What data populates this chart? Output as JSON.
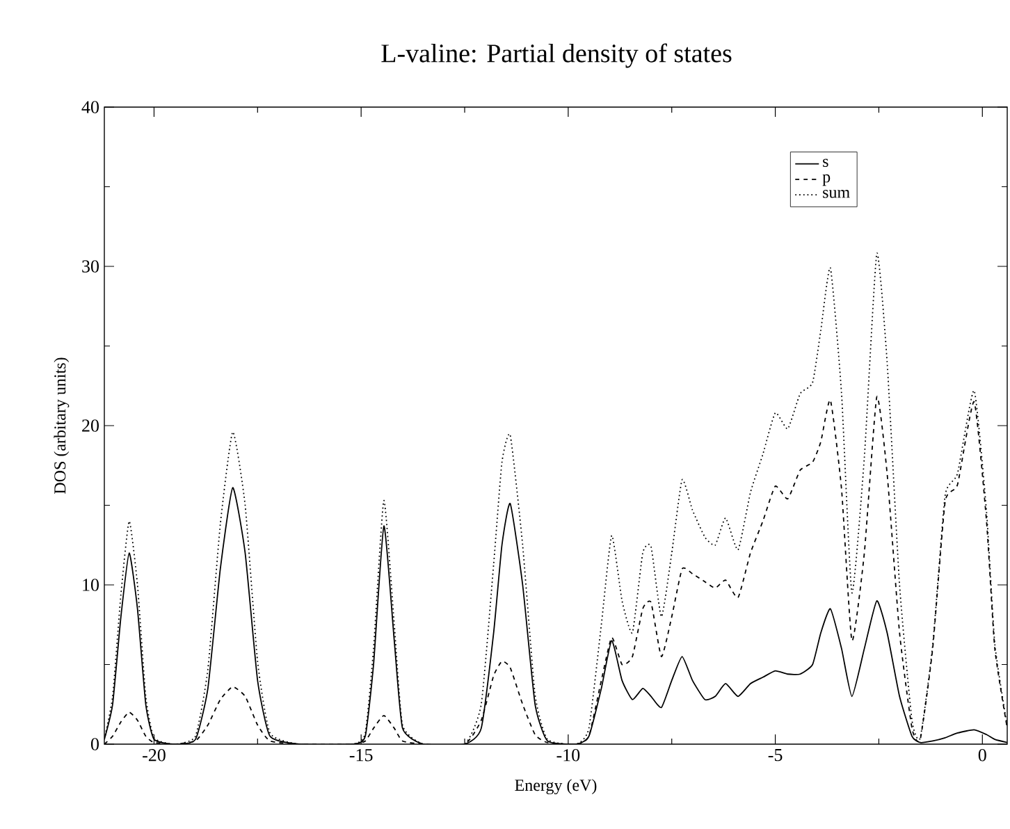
{
  "chart_data": {
    "type": "line",
    "title": "L-valine: Partial density of states",
    "xlabel": "Energy (eV)",
    "ylabel": "DOS (arbitary units)",
    "x": [
      -21.2,
      -21.0,
      -20.8,
      -20.6,
      -20.4,
      -20.2,
      -20.0,
      -19.5,
      -19.0,
      -18.7,
      -18.4,
      -18.1,
      -17.8,
      -17.5,
      -17.2,
      -16.5,
      -15.2,
      -14.9,
      -14.7,
      -14.45,
      -14.2,
      -14.0,
      -13.5,
      -12.5,
      -12.1,
      -11.8,
      -11.6,
      -11.4,
      -11.1,
      -10.8,
      -10.5,
      -9.8,
      -9.5,
      -9.2,
      -8.95,
      -8.7,
      -8.45,
      -8.2,
      -8.0,
      -7.75,
      -7.5,
      -7.25,
      -7.0,
      -6.7,
      -6.45,
      -6.2,
      -5.9,
      -5.6,
      -5.3,
      -5.0,
      -4.7,
      -4.4,
      -4.1,
      -3.9,
      -3.67,
      -3.4,
      -3.15,
      -2.85,
      -2.55,
      -2.3,
      -2.0,
      -1.7,
      -1.5,
      -1.2,
      -0.9,
      -0.6,
      -0.2,
      0.1,
      0.3,
      0.6
    ],
    "series": [
      {
        "name": "s",
        "color": "#000000",
        "line_style": "solid",
        "values": [
          0.3,
          2.5,
          8,
          12,
          8.5,
          2.5,
          0.3,
          0,
          0.3,
          3.5,
          11,
          16.1,
          12,
          4,
          0.5,
          0,
          0,
          0.5,
          5,
          13.7,
          6.5,
          1,
          0,
          0,
          1,
          7,
          12.5,
          15.1,
          10,
          2.5,
          0.2,
          0,
          0.5,
          3.5,
          6.5,
          4,
          2.8,
          3.5,
          3.0,
          2.3,
          4.0,
          5.5,
          4.0,
          2.8,
          3.0,
          3.8,
          3.0,
          3.8,
          4.2,
          4.6,
          4.4,
          4.4,
          5.0,
          7.0,
          8.5,
          6.0,
          3.0,
          6.0,
          9.0,
          7.0,
          3.0,
          0.5,
          0.1,
          0.2,
          0.4,
          0.7,
          0.9,
          0.6,
          0.3,
          0.1
        ]
      },
      {
        "name": "p",
        "color": "#000000",
        "line_style": "dashed",
        "values": [
          0,
          0.5,
          1.4,
          2.0,
          1.5,
          0.5,
          0.1,
          0,
          0.2,
          1.2,
          2.8,
          3.6,
          3.0,
          1.2,
          0.2,
          0,
          0,
          0.2,
          1.0,
          1.8,
          1.0,
          0.2,
          0,
          0,
          1.5,
          4.3,
          5.2,
          4.8,
          2.5,
          0.6,
          0.1,
          0,
          0.5,
          4,
          6.7,
          5,
          5.5,
          8.5,
          8.9,
          5.5,
          8,
          11.0,
          10.7,
          10.2,
          9.8,
          10.3,
          9.2,
          12,
          14,
          16.2,
          15.4,
          17.2,
          17.7,
          19,
          21.6,
          16,
          6.5,
          12,
          21.8,
          17,
          7,
          1,
          0.3,
          6,
          15.2,
          16.3,
          21.5,
          14,
          6,
          1
        ]
      },
      {
        "name": "sum",
        "color": "#000000",
        "line_style": "dotted",
        "values": [
          0.3,
          3,
          9.4,
          14,
          10,
          3,
          0.4,
          0,
          0.5,
          4.7,
          13.8,
          19.6,
          15,
          5.2,
          0.7,
          0,
          0,
          0.7,
          6,
          15.3,
          7.5,
          1.2,
          0,
          0,
          2.5,
          11.3,
          17.7,
          19.4,
          12.5,
          3.1,
          0.3,
          0,
          1,
          7.5,
          13.1,
          9,
          7,
          12,
          12.4,
          8,
          12,
          16.6,
          14.7,
          13,
          12.5,
          14.2,
          12.2,
          15.8,
          18.2,
          20.8,
          19.8,
          22,
          22.7,
          26,
          29.9,
          22,
          9.5,
          18,
          30.8,
          24,
          10,
          1.5,
          0.4,
          6.2,
          15.6,
          17,
          22.2,
          14.6,
          6.3,
          1.1
        ]
      }
    ],
    "xlim": [
      -21.2,
      0.6
    ],
    "ylim": [
      0,
      40
    ],
    "xticks": [
      -20,
      -15,
      -10,
      -5,
      0
    ],
    "yticks": [
      0,
      10,
      20,
      30,
      40
    ],
    "grid": false,
    "legend": "top right",
    "marker": "none"
  }
}
